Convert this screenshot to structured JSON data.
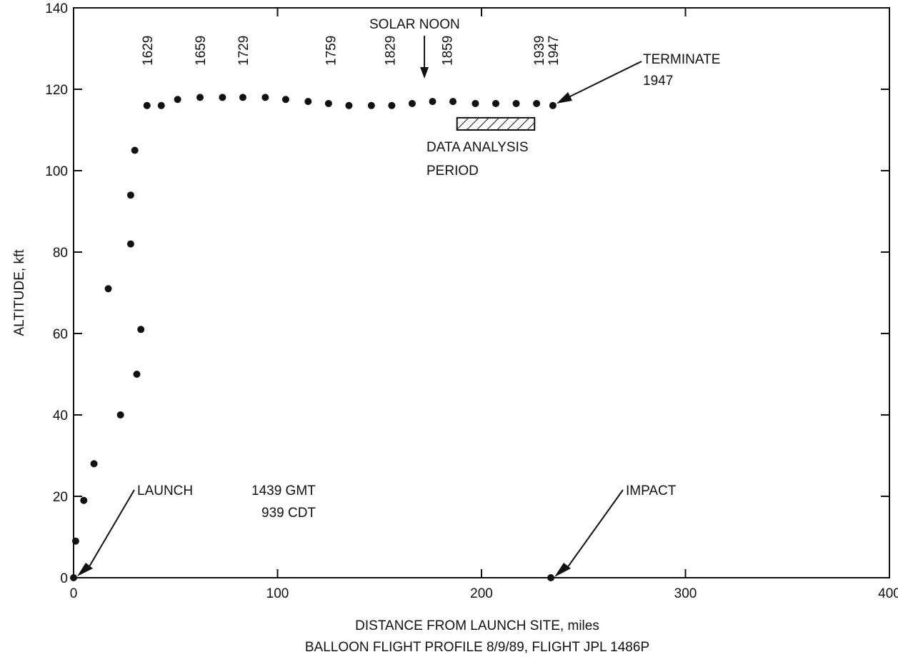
{
  "chart_data": {
    "type": "scatter",
    "xlabel": "DISTANCE FROM LAUNCH SITE, miles",
    "ylabel": "ALTITUDE, kft",
    "caption": "BALLOON FLIGHT PROFILE 8/9/89, FLIGHT JPL 1486P",
    "xlim": [
      0,
      400
    ],
    "ylim": [
      0,
      140
    ],
    "xticks": [
      0,
      100,
      200,
      300,
      400
    ],
    "yticks": [
      0,
      20,
      40,
      60,
      80,
      100,
      120,
      140
    ],
    "grid": false,
    "series": [
      {
        "points": [
          [
            0,
            0
          ],
          [
            1,
            9
          ],
          [
            5,
            19
          ],
          [
            10,
            28
          ],
          [
            17,
            71
          ],
          [
            23,
            40
          ],
          [
            28,
            94
          ],
          [
            28,
            82
          ],
          [
            30,
            105
          ],
          [
            31,
            50
          ],
          [
            33,
            61
          ],
          [
            36,
            116
          ],
          [
            43,
            116
          ],
          [
            51,
            117.5
          ],
          [
            62,
            118
          ],
          [
            73,
            118
          ],
          [
            83,
            118
          ],
          [
            94,
            118
          ],
          [
            104,
            117.5
          ],
          [
            115,
            117
          ],
          [
            125,
            116.5
          ],
          [
            135,
            116
          ],
          [
            146,
            116
          ],
          [
            156,
            116
          ],
          [
            166,
            116.5
          ],
          [
            176,
            117
          ],
          [
            186,
            117
          ],
          [
            197,
            116.5
          ],
          [
            207,
            116.5
          ],
          [
            217,
            116.5
          ],
          [
            227,
            116.5
          ],
          [
            235,
            116
          ]
        ]
      }
    ],
    "time_labels": [
      {
        "text": "1629",
        "x": 36
      },
      {
        "text": "1659",
        "x": 62
      },
      {
        "text": "1729",
        "x": 83
      },
      {
        "text": "1759",
        "x": 126
      },
      {
        "text": "1829",
        "x": 155
      },
      {
        "text": "1859",
        "x": 183
      },
      {
        "text": "1939",
        "x": 228
      },
      {
        "text": "1947",
        "x": 235
      }
    ],
    "annotations": {
      "solar_noon": "SOLAR NOON",
      "terminate": "TERMINATE",
      "terminate_time": "1947",
      "data_analysis_1": "DATA ANALYSIS",
      "data_analysis_2": "PERIOD",
      "launch": "LAUNCH",
      "launch_gmt": "1439 GMT",
      "launch_cdt": "939 CDT",
      "impact": "IMPACT"
    },
    "impact_point": [
      234,
      0
    ],
    "solar_noon_x": 172,
    "data_analysis_period_x": [
      188,
      226
    ]
  }
}
